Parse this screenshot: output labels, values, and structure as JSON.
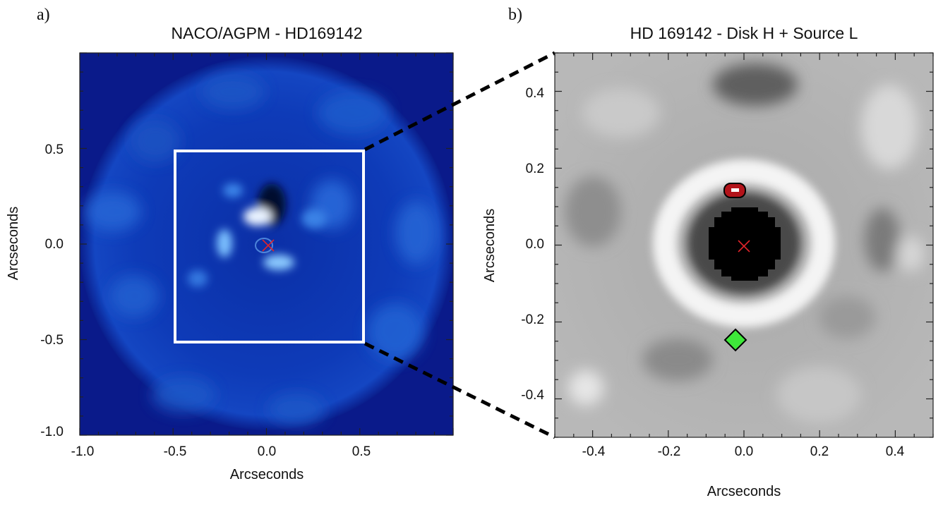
{
  "figure": {
    "panels": [
      {
        "id": "a",
        "label": "a)",
        "title": "NACO/AGPM - HD169142",
        "xlabel": "Arcseconds",
        "ylabel": "Arcseconds",
        "xticks": [
          "-1.0",
          "-0.5",
          "0.0",
          "0.5"
        ],
        "yticks": [
          "0.5",
          "0.0",
          "-0.5",
          "-1.0"
        ],
        "colormap": "blue",
        "markers": [
          "star-position-cross"
        ],
        "overlay": "zoom box spanning -0.5 to 0.5 arcsec"
      },
      {
        "id": "b",
        "label": "b)",
        "title": "HD 169142 - Disk H + Source L",
        "xlabel": "Arcseconds",
        "ylabel": "Arcseconds",
        "xticks": [
          "-0.4",
          "-0.2",
          "0.0",
          "0.2",
          "0.4"
        ],
        "yticks": [
          "0.4",
          "0.2",
          "0.0",
          "-0.2",
          "-0.4"
        ],
        "colormap": "grayscale",
        "markers": [
          "star-position-cross",
          "source-contour",
          "green-diamond"
        ]
      }
    ]
  },
  "chart_data": [
    {
      "type": "heatmap",
      "title": "NACO/AGPM - HD169142",
      "xlabel": "Arcseconds",
      "ylabel": "Arcseconds",
      "xlim": [
        -1.0,
        1.0
      ],
      "ylim": [
        -1.0,
        1.0
      ],
      "star": {
        "x": 0.0,
        "y": 0.0
      },
      "zoom_box": {
        "x": [
          -0.5,
          0.5
        ],
        "y": [
          -0.5,
          0.5
        ]
      },
      "bright_features": [
        {
          "x": -0.05,
          "y": 0.14
        },
        {
          "x": -0.25,
          "y": -0.01
        },
        {
          "x": 0.1,
          "y": -0.09
        }
      ]
    },
    {
      "type": "heatmap",
      "title": "HD 169142 - Disk H + Source L",
      "xlabel": "Arcseconds",
      "ylabel": "Arcseconds",
      "xlim": [
        -0.5,
        0.5
      ],
      "ylim": [
        -0.5,
        0.5
      ],
      "star": {
        "x": 0.0,
        "y": 0.0
      },
      "source_contour": {
        "x": -0.03,
        "y": 0.14
      },
      "green_diamond": {
        "x": -0.03,
        "y": -0.25
      },
      "ring_radius": 0.2
    }
  ]
}
